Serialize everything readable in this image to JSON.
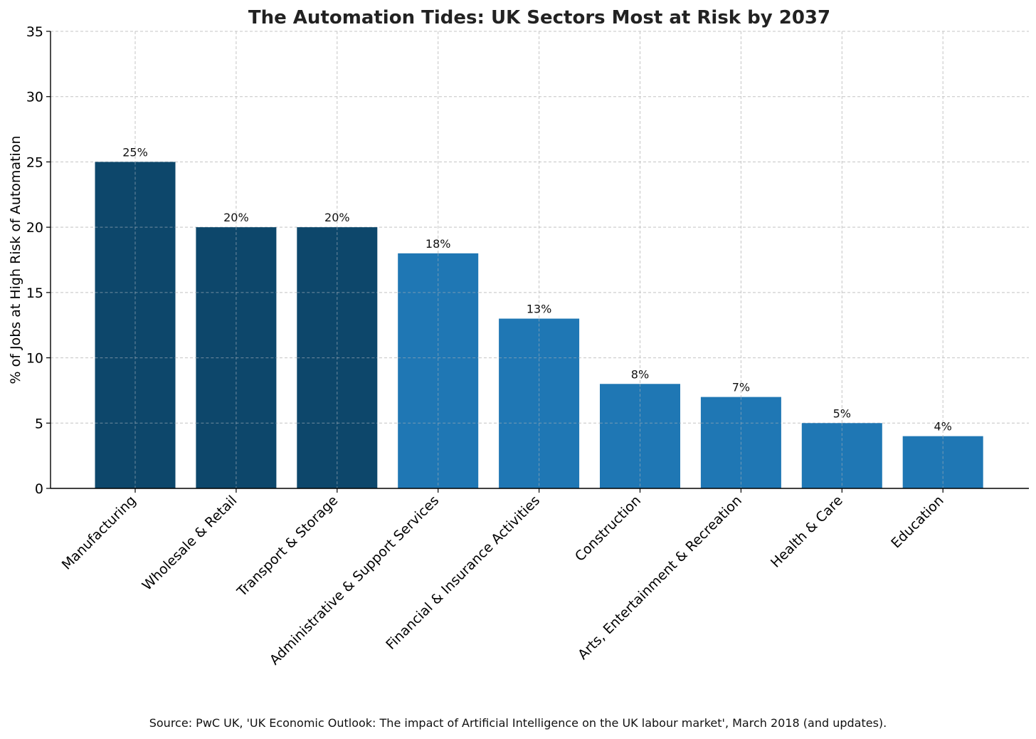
{
  "chart_data": {
    "type": "bar",
    "title": "The Automation Tides: UK Sectors Most at Risk by 2037",
    "xlabel": "",
    "ylabel": "% of Jobs at High Risk of Automation",
    "ylim": [
      0,
      35
    ],
    "yticks": [
      0,
      5,
      10,
      15,
      20,
      25,
      30,
      35
    ],
    "grid": true,
    "categories": [
      "Manufacturing",
      "Wholesale & Retail",
      "Transport & Storage",
      "Administrative & Support Services",
      "Financial & Insurance Activities",
      "Construction",
      "Arts, Entertainment & Recreation",
      "Health & Care",
      "Education"
    ],
    "values": [
      25,
      20,
      20,
      18,
      13,
      8,
      7,
      5,
      4
    ],
    "data_labels": [
      "25%",
      "20%",
      "20%",
      "18%",
      "13%",
      "8%",
      "7%",
      "5%",
      "4%"
    ],
    "bar_colors": [
      "#0d476b",
      "#0d476b",
      "#0d476b",
      "#1f77b4",
      "#1f77b4",
      "#1f77b4",
      "#1f77b4",
      "#1f77b4",
      "#1f77b4"
    ]
  },
  "source_note": "Source: PwC UK, 'UK Economic Outlook: The impact of Artificial Intelligence on the UK labour market', March 2018 (and updates)."
}
